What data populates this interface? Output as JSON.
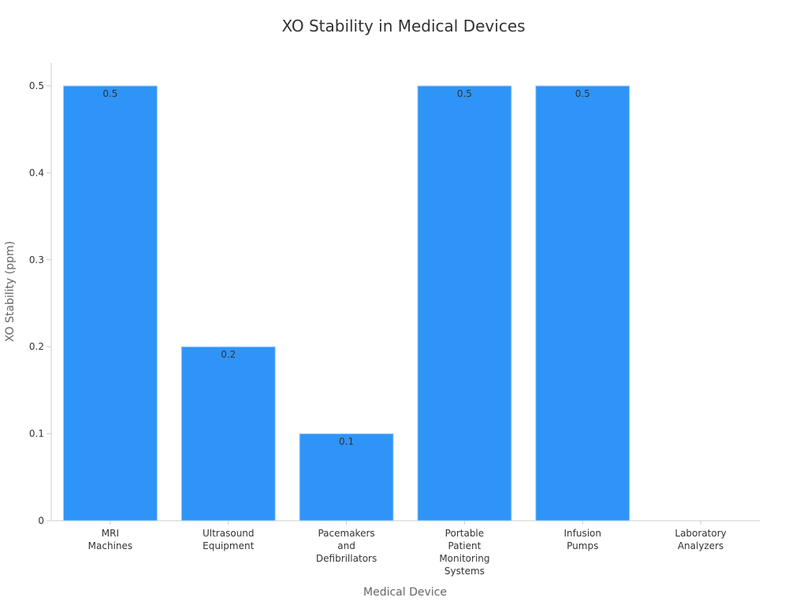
{
  "chart_data": {
    "type": "bar",
    "title": "XO Stability in Medical Devices",
    "xlabel": "Medical Device",
    "ylabel": "XO Stability (ppm)",
    "categories": [
      [
        "MRI",
        "Machines"
      ],
      [
        "Ultrasound",
        "Equipment"
      ],
      [
        "Pacemakers",
        "and",
        "Defibrillators"
      ],
      [
        "Portable",
        "Patient",
        "Monitoring",
        "Systems"
      ],
      [
        "Infusion",
        "Pumps"
      ],
      [
        "Laboratory",
        "Analyzers"
      ]
    ],
    "values": [
      0.5,
      0.2,
      0.1,
      0.5,
      0.5,
      0
    ],
    "data_labels": [
      "0.5",
      "0.2",
      "0.1",
      "0.5",
      "0.5",
      ""
    ],
    "y_ticks": [
      "0",
      "0.1",
      "0.2",
      "0.3",
      "0.4",
      "0.5"
    ],
    "ylim": [
      0,
      0.5
    ],
    "grid": false,
    "bar_color": "#2f94f7",
    "bar_edge_color": "#a8d4fb"
  }
}
